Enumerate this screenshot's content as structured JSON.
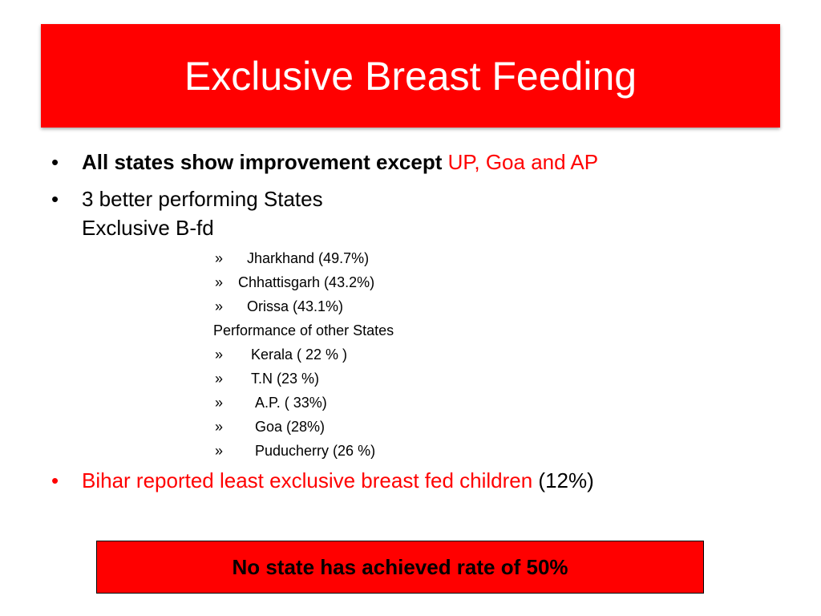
{
  "title": "Exclusive Breast Feeding",
  "bullets": [
    {
      "marker": "•",
      "bold_text": "All states show improvement except",
      "red_text": "UP, Goa and AP"
    },
    {
      "marker": "•",
      "line1": "3 better performing States",
      "line2": "Exclusive B-fd"
    },
    {
      "marker": "•",
      "red_text": "Bihar reported least exclusive breast fed children",
      "suffix": "(12%)"
    }
  ],
  "top_states": [
    {
      "marker": "»",
      "label": "Jharkhand  (49.7%)"
    },
    {
      "marker": "»",
      "label": "Chhattisgarh (43.2%)"
    },
    {
      "marker": "»",
      "label": "Orissa (43.1%)"
    }
  ],
  "other_heading": "Performance of other States",
  "other_states": [
    {
      "marker": "»",
      "label": "Kerala  ( 22 % )"
    },
    {
      "marker": "»",
      "label": "T.N  (23 %)"
    },
    {
      "marker": "»",
      "label": "A.P. ( 33%)"
    },
    {
      "marker": "»",
      "label": "Goa  (28%)"
    },
    {
      "marker": "»",
      "label": "Puducherry  (26 %)"
    }
  ],
  "callout": "No state has achieved rate of 50%",
  "colors": {
    "accent": "#ff0000",
    "text": "#000000",
    "title_text": "#ffffff"
  }
}
